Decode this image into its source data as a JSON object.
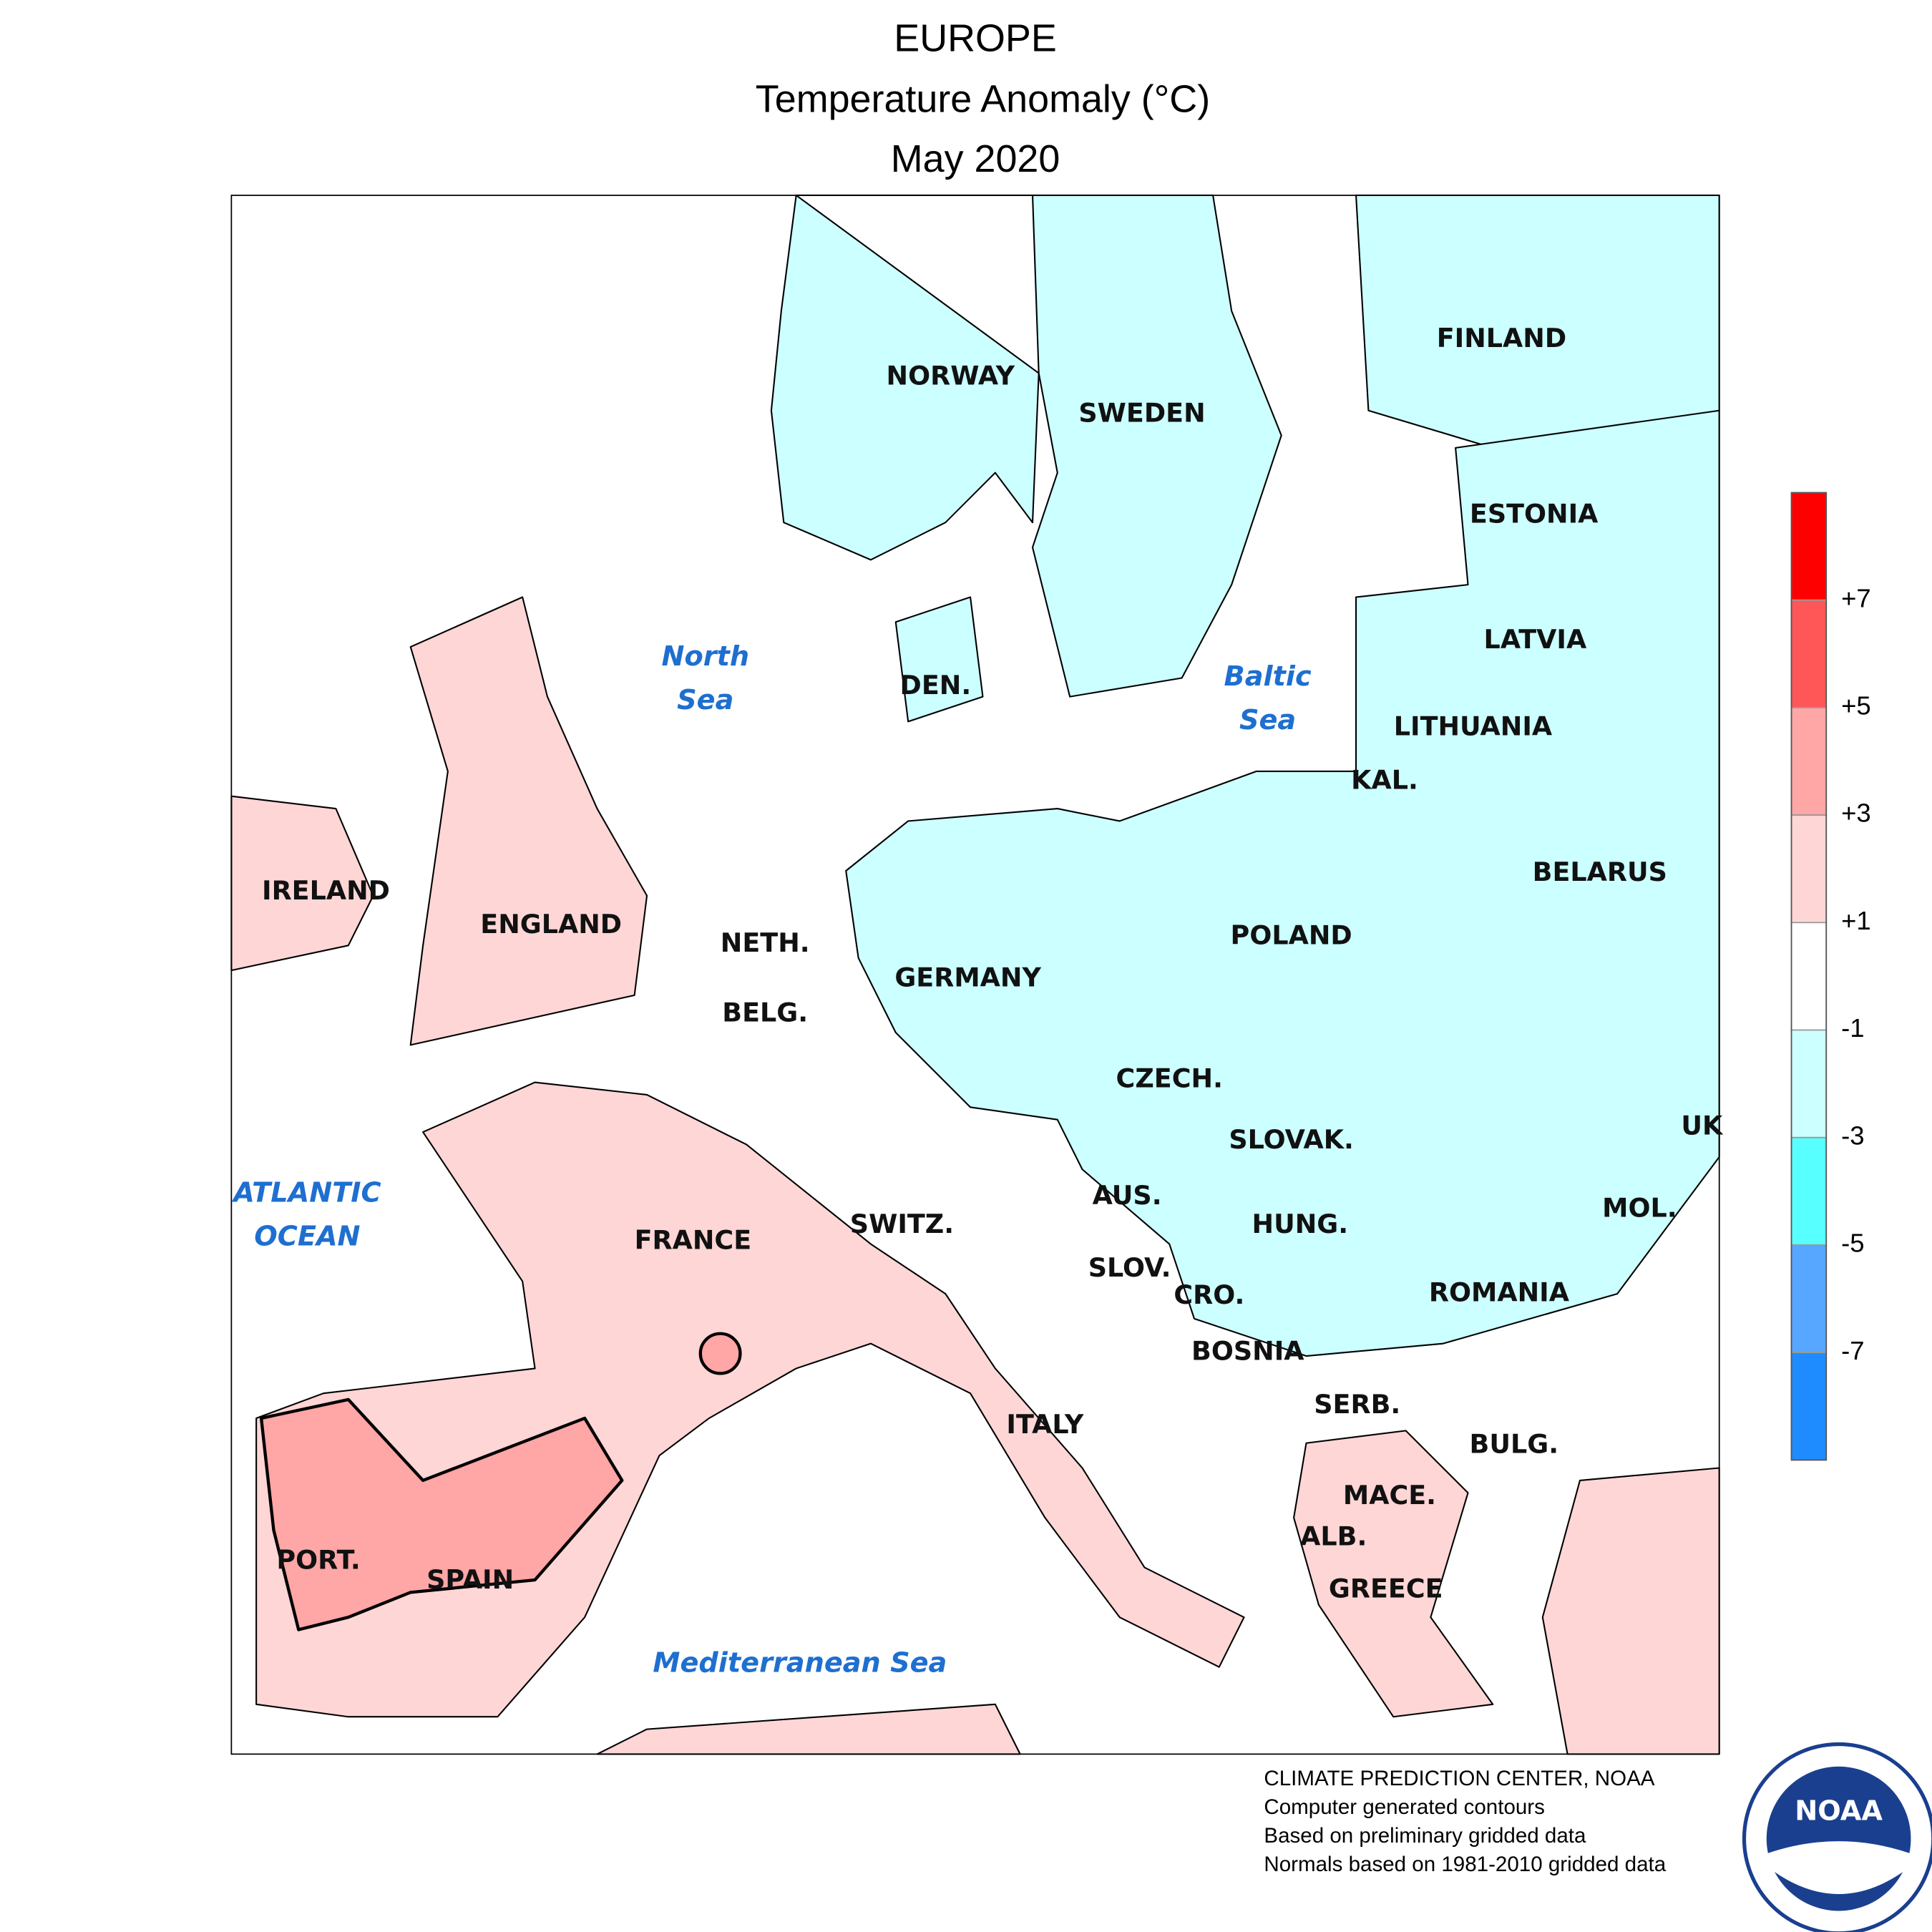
{
  "header": {
    "title": "EUROPE",
    "subtitle": "Temperature Anomaly (°C)",
    "period": "May 2020"
  },
  "countries": [
    {
      "label": "NORWAY",
      "at": [
        764,
        303
      ]
    },
    {
      "label": "SWEDEN",
      "at": [
        918,
        333
      ]
    },
    {
      "label": "FINLAND",
      "at": [
        1207,
        273
      ]
    },
    {
      "label": "ESTONIA",
      "at": [
        1233,
        414
      ]
    },
    {
      "label": "LATVIA",
      "at": [
        1234,
        515
      ]
    },
    {
      "label": "LITHUANIA",
      "at": [
        1184,
        585
      ]
    },
    {
      "label": "KAL.",
      "at": [
        1113,
        628
      ]
    },
    {
      "label": "BELARUS",
      "at": [
        1286,
        702
      ]
    },
    {
      "label": "POLAND",
      "at": [
        1038,
        753
      ]
    },
    {
      "label": "GERMANY",
      "at": [
        778,
        787
      ]
    },
    {
      "label": "DEN.",
      "at": [
        752,
        552
      ]
    },
    {
      "label": "NETH.",
      "at": [
        615,
        759
      ]
    },
    {
      "label": "BELG.",
      "at": [
        615,
        815
      ]
    },
    {
      "label": "CZECH.",
      "at": [
        940,
        868
      ]
    },
    {
      "label": "SLOVAK.",
      "at": [
        1038,
        917
      ]
    },
    {
      "label": "UK",
      "at": [
        1368,
        906
      ]
    },
    {
      "label": "MOL.",
      "at": [
        1318,
        972
      ]
    },
    {
      "label": "HUNG.",
      "at": [
        1045,
        985
      ]
    },
    {
      "label": "AUS.",
      "at": [
        906,
        962
      ]
    },
    {
      "label": "SWITZ.",
      "at": [
        725,
        985
      ]
    },
    {
      "label": "SLOV.",
      "at": [
        908,
        1020
      ]
    },
    {
      "label": "CRO.",
      "at": [
        972,
        1042
      ]
    },
    {
      "label": "ROMANIA",
      "at": [
        1205,
        1040
      ]
    },
    {
      "label": "BOSNIA",
      "at": [
        1003,
        1087
      ]
    },
    {
      "label": "SERB.",
      "at": [
        1091,
        1130
      ]
    },
    {
      "label": "BULG.",
      "at": [
        1217,
        1162
      ]
    },
    {
      "label": "ITALY",
      "at": [
        840,
        1146
      ]
    },
    {
      "label": "MACE.",
      "at": [
        1117,
        1203
      ]
    },
    {
      "label": "ALB.",
      "at": [
        1072,
        1236
      ]
    },
    {
      "label": "GREECE",
      "at": [
        1114,
        1278
      ]
    },
    {
      "label": "PORT.",
      "at": [
        256,
        1255
      ]
    },
    {
      "label": "SPAIN",
      "at": [
        378,
        1271
      ]
    },
    {
      "label": "FRANCE",
      "at": [
        557,
        998
      ]
    },
    {
      "label": "ENGLAND",
      "at": [
        443,
        744
      ]
    },
    {
      "label": "IRELAND",
      "at": [
        262,
        717
      ]
    }
  ],
  "seas": [
    {
      "lines": [
        "North",
        "Sea"
      ],
      "at": [
        567,
        529
      ]
    },
    {
      "lines": [
        "Baltic",
        "Sea"
      ],
      "at": [
        1019,
        545
      ]
    },
    {
      "lines": [
        "ATLANTIC",
        "OCEAN"
      ],
      "at": [
        247,
        960
      ]
    },
    {
      "lines": [
        "Mediterranean Sea"
      ],
      "at": [
        643,
        1338
      ]
    }
  ],
  "legend": {
    "colors": [
      "#ff0000",
      "#ff5757",
      "#ffa6a6",
      "#ffd6d6",
      "#ffffff",
      "#ccffff",
      "#57ffff",
      "#57a6ff",
      "#1e8cff"
    ],
    "ticks": [
      {
        "value": 7,
        "label": "+7"
      },
      {
        "value": 5,
        "label": "+5"
      },
      {
        "value": 3,
        "label": "+3"
      },
      {
        "value": 1,
        "label": "+1"
      },
      {
        "value": -1,
        "label": "-1"
      },
      {
        "value": -3,
        "label": "-3"
      },
      {
        "value": -5,
        "label": "-5"
      },
      {
        "value": -7,
        "label": "-7"
      }
    ]
  },
  "footer": [
    "CLIMATE PREDICTION CENTER, NOAA",
    "Computer generated contours",
    "Based on preliminary gridded data",
    "Normals based on 1981-2010 gridded data"
  ],
  "logo": "NOAA"
}
